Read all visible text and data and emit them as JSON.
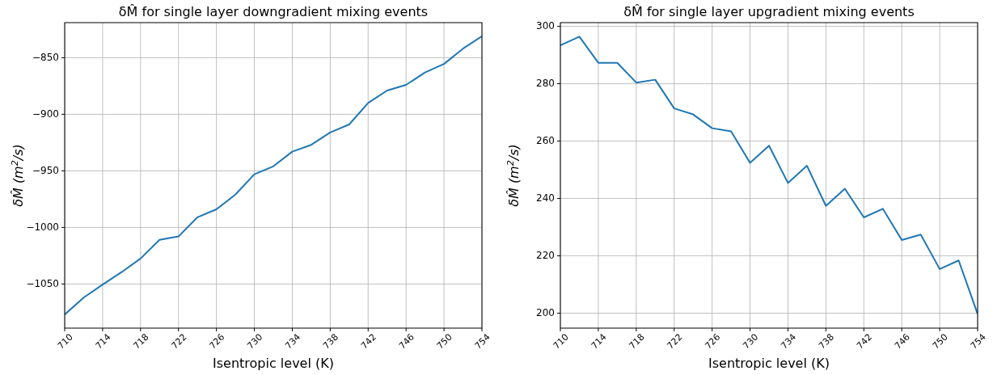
{
  "chart_data": [
    {
      "type": "line",
      "title": "δM̂ for single layer downgradient mixing events",
      "xlabel": "Isentropic level (K)",
      "ylabel": "δM̂ (m$^{2}$/s)",
      "x": [
        710,
        712,
        714,
        716,
        718,
        720,
        722,
        724,
        726,
        728,
        730,
        732,
        734,
        736,
        738,
        740,
        742,
        744,
        746,
        748,
        750,
        752,
        754
      ],
      "series": [
        {
          "color": "#1f77b4",
          "values": [
            -1077,
            -1062,
            -1050.5,
            -1039.5,
            -1027.5,
            -1011,
            -1008,
            -991,
            -984,
            -971,
            -953,
            -946,
            -933,
            -927,
            -916,
            -909,
            -890,
            -879,
            -874,
            -863,
            -855.5,
            -842,
            -831
          ]
        }
      ],
      "xlim": [
        710,
        754
      ],
      "xticks": [
        710,
        714,
        718,
        722,
        726,
        730,
        734,
        738,
        742,
        746,
        750,
        754
      ],
      "ylim": [
        -1089,
        -819
      ],
      "yticks": [
        -1050,
        -1000,
        -950,
        -900,
        -850
      ],
      "grid": true
    },
    {
      "type": "line",
      "title": "δM̂ for single layer upgradient mixing events",
      "xlabel": "Isentropic level (K)",
      "ylabel": "δM̂ (m$^{2}$/s)",
      "x": [
        710,
        712,
        714,
        716,
        718,
        720,
        722,
        724,
        726,
        728,
        730,
        732,
        734,
        736,
        738,
        740,
        742,
        744,
        746,
        748,
        750,
        752,
        754
      ],
      "series": [
        {
          "color": "#1f77b4",
          "values": [
            293.4,
            296.4,
            287.3,
            287.3,
            280.4,
            281.4,
            271.4,
            269.3,
            264.5,
            263.4,
            252.4,
            258.4,
            245.4,
            251.4,
            237.4,
            243.4,
            233.4,
            236.4,
            225.5,
            227.4,
            215.4,
            218.4,
            199.7
          ]
        }
      ],
      "xlim": [
        710,
        754
      ],
      "xticks": [
        710,
        714,
        718,
        722,
        726,
        730,
        734,
        738,
        742,
        746,
        750,
        754
      ],
      "ylim": [
        194.8,
        301.3
      ],
      "yticks": [
        200,
        220,
        240,
        260,
        280,
        300
      ],
      "grid": true
    }
  ]
}
